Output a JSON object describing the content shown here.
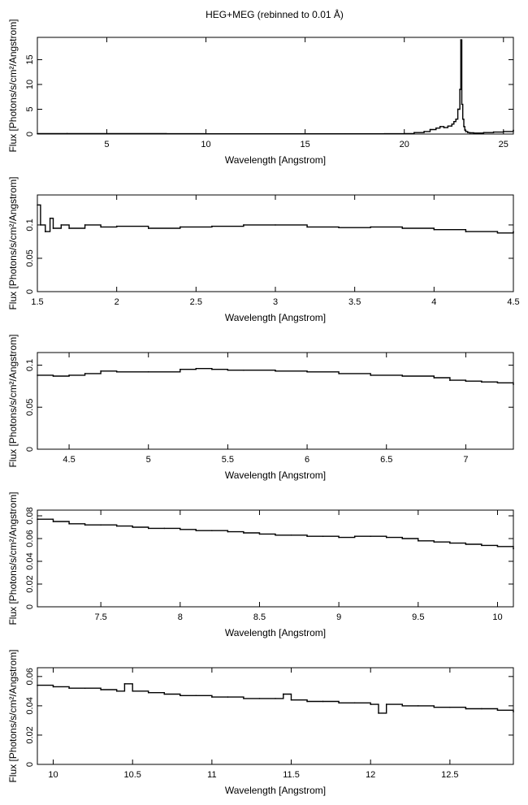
{
  "title": "HEG+MEG (rebinned to 0.01 Å)",
  "chart_data": [
    {
      "type": "line",
      "xlabel": "Wavelength [Angstrom]",
      "ylabel": "Flux [Photons/s/cm²/Angstrom]",
      "xlim": [
        1.5,
        25.5
      ],
      "ylim": [
        0,
        19.5
      ],
      "xticks": [
        5,
        10,
        15,
        20,
        25
      ],
      "yticks": [
        0,
        5,
        10,
        15
      ],
      "series": [
        {
          "x": [
            1.5,
            3,
            5,
            8,
            10,
            13,
            15,
            17,
            19,
            20,
            20.5,
            21,
            21.3,
            21.6,
            21.8,
            22.0,
            22.2,
            22.4,
            22.5,
            22.6,
            22.7,
            22.8,
            22.85,
            22.9,
            22.95,
            23.0,
            23.05,
            23.1,
            23.2,
            23.3,
            23.5,
            24,
            24.5,
            25,
            25.5
          ],
          "y": [
            0.1,
            0.09,
            0.08,
            0.06,
            0.05,
            0.05,
            0.05,
            0.05,
            0.06,
            0.1,
            0.3,
            0.5,
            0.9,
            1.2,
            1.5,
            1.3,
            1.6,
            2.0,
            2.5,
            3.0,
            5.0,
            9.0,
            19.0,
            6.0,
            3.0,
            1.5,
            0.8,
            0.5,
            0.3,
            0.25,
            0.2,
            0.3,
            0.4,
            0.5,
            0.8
          ]
        }
      ]
    },
    {
      "type": "line",
      "xlabel": "Wavelength [Angstrom]",
      "ylabel": "Flux [Photons/s/cm²/Angstrom]",
      "xlim": [
        1.5,
        4.5
      ],
      "ylim": [
        0,
        0.145
      ],
      "xticks": [
        1.5,
        2,
        2.5,
        3,
        3.5,
        4,
        4.5
      ],
      "yticks": [
        0,
        0.05,
        0.1
      ],
      "series": [
        {
          "x": [
            1.5,
            1.52,
            1.55,
            1.58,
            1.6,
            1.65,
            1.7,
            1.8,
            1.9,
            2.0,
            2.2,
            2.4,
            2.6,
            2.8,
            3.0,
            3.2,
            3.4,
            3.6,
            3.8,
            4.0,
            4.2,
            4.4,
            4.5
          ],
          "y": [
            0.13,
            0.1,
            0.09,
            0.11,
            0.095,
            0.1,
            0.095,
            0.1,
            0.097,
            0.098,
            0.095,
            0.097,
            0.098,
            0.1,
            0.1,
            0.097,
            0.096,
            0.097,
            0.095,
            0.093,
            0.09,
            0.088,
            0.09
          ]
        }
      ]
    },
    {
      "type": "line",
      "xlabel": "Wavelength [Angstrom]",
      "ylabel": "Flux [Photons/s/cm²/Angstrom]",
      "xlim": [
        4.3,
        7.3
      ],
      "ylim": [
        0,
        0.115
      ],
      "xticks": [
        4.5,
        5,
        5.5,
        6,
        6.5,
        7
      ],
      "yticks": [
        0,
        0.05,
        0.1
      ],
      "series": [
        {
          "x": [
            4.3,
            4.4,
            4.5,
            4.6,
            4.7,
            4.8,
            5.0,
            5.2,
            5.3,
            5.4,
            5.5,
            5.6,
            5.8,
            6.0,
            6.2,
            6.4,
            6.6,
            6.8,
            6.9,
            7.0,
            7.1,
            7.2,
            7.3
          ],
          "y": [
            0.088,
            0.087,
            0.088,
            0.09,
            0.093,
            0.092,
            0.092,
            0.095,
            0.096,
            0.095,
            0.094,
            0.094,
            0.093,
            0.092,
            0.09,
            0.088,
            0.087,
            0.085,
            0.082,
            0.081,
            0.08,
            0.079,
            0.077
          ]
        }
      ]
    },
    {
      "type": "line",
      "xlabel": "Wavelength [Angstrom]",
      "ylabel": "Flux [Photons/s/cm²/Angstrom]",
      "xlim": [
        7.1,
        10.1
      ],
      "ylim": [
        0,
        0.085
      ],
      "xticks": [
        7.5,
        8,
        8.5,
        9,
        9.5,
        10
      ],
      "yticks": [
        0,
        0.02,
        0.04,
        0.06,
        0.08
      ],
      "series": [
        {
          "x": [
            7.1,
            7.2,
            7.3,
            7.4,
            7.5,
            7.6,
            7.7,
            7.8,
            7.9,
            8.0,
            8.1,
            8.2,
            8.3,
            8.4,
            8.5,
            8.6,
            8.7,
            8.8,
            8.9,
            9.0,
            9.1,
            9.2,
            9.3,
            9.4,
            9.5,
            9.6,
            9.7,
            9.8,
            9.9,
            10.0,
            10.1
          ],
          "y": [
            0.077,
            0.075,
            0.073,
            0.072,
            0.072,
            0.071,
            0.07,
            0.069,
            0.069,
            0.068,
            0.067,
            0.067,
            0.066,
            0.065,
            0.064,
            0.063,
            0.063,
            0.062,
            0.062,
            0.061,
            0.062,
            0.062,
            0.061,
            0.06,
            0.058,
            0.057,
            0.056,
            0.055,
            0.054,
            0.053,
            0.051
          ]
        }
      ]
    },
    {
      "type": "line",
      "xlabel": "Wavelength [Angstrom]",
      "ylabel": "Flux [Photons/s/cm²/Angstrom]",
      "xlim": [
        9.9,
        12.9
      ],
      "ylim": [
        0,
        0.066
      ],
      "xticks": [
        10,
        10.5,
        11,
        11.5,
        12,
        12.5
      ],
      "yticks": [
        0,
        0.02,
        0.04,
        0.06
      ],
      "series": [
        {
          "x": [
            9.9,
            10.0,
            10.1,
            10.2,
            10.3,
            10.4,
            10.45,
            10.5,
            10.6,
            10.7,
            10.8,
            10.9,
            11.0,
            11.1,
            11.2,
            11.3,
            11.4,
            11.45,
            11.5,
            11.6,
            11.7,
            11.8,
            11.9,
            12.0,
            12.05,
            12.1,
            12.2,
            12.3,
            12.4,
            12.5,
            12.6,
            12.7,
            12.8,
            12.9
          ],
          "y": [
            0.054,
            0.053,
            0.052,
            0.052,
            0.051,
            0.05,
            0.055,
            0.05,
            0.049,
            0.048,
            0.047,
            0.047,
            0.046,
            0.046,
            0.045,
            0.045,
            0.045,
            0.048,
            0.044,
            0.043,
            0.043,
            0.042,
            0.042,
            0.041,
            0.035,
            0.041,
            0.04,
            0.04,
            0.039,
            0.039,
            0.038,
            0.038,
            0.037,
            0.036
          ]
        }
      ]
    }
  ]
}
